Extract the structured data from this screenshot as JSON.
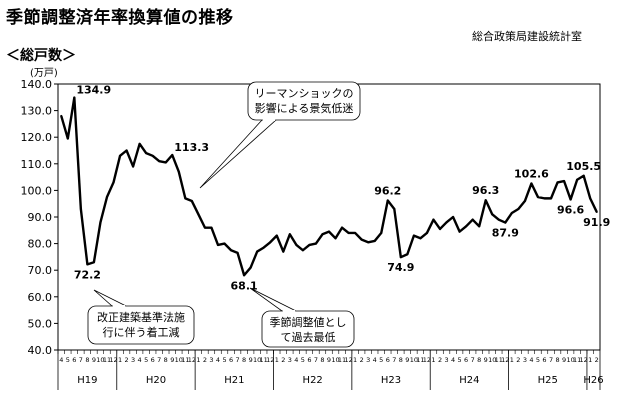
{
  "header": {
    "title": "季節調整済年率換算値の推移",
    "department": "総合政策局建設統計室",
    "subtitle": "＜総戸数＞"
  },
  "chart_data": {
    "type": "line",
    "title": "季節調整済年率換算値の推移",
    "ylabel": "(万戸)",
    "ylim": [
      40.0,
      140.0
    ],
    "yticks": [
      40.0,
      50.0,
      60.0,
      70.0,
      80.0,
      90.0,
      100.0,
      110.0,
      120.0,
      130.0,
      140.0
    ],
    "grid": false,
    "years": [
      {
        "label": "H19",
        "start": 0,
        "count": 9
      },
      {
        "label": "H20",
        "start": 9,
        "count": 12
      },
      {
        "label": "H21",
        "start": 21,
        "count": 12
      },
      {
        "label": "H22",
        "start": 33,
        "count": 12
      },
      {
        "label": "H23",
        "start": 45,
        "count": 12
      },
      {
        "label": "H24",
        "start": 57,
        "count": 12
      },
      {
        "label": "H25",
        "start": 69,
        "count": 12
      },
      {
        "label": "H26",
        "start": 81,
        "count": 2
      }
    ],
    "months": [
      "4",
      "5",
      "6",
      "7",
      "8",
      "9",
      "10",
      "11",
      "12",
      "1",
      "2",
      "3",
      "4",
      "5",
      "6",
      "7",
      "8",
      "9",
      "10",
      "11",
      "12",
      "1",
      "2",
      "3",
      "4",
      "5",
      "6",
      "7",
      "8",
      "9",
      "10",
      "11",
      "12",
      "1",
      "2",
      "3",
      "4",
      "5",
      "6",
      "7",
      "8",
      "9",
      "10",
      "11",
      "12",
      "1",
      "2",
      "3",
      "4",
      "5",
      "6",
      "7",
      "8",
      "9",
      "10",
      "11",
      "12",
      "1",
      "2",
      "3",
      "4",
      "5",
      "6",
      "7",
      "8",
      "9",
      "10",
      "11",
      "12",
      "1",
      "2",
      "3",
      "4",
      "5",
      "6",
      "7",
      "8",
      "9",
      "10",
      "11",
      "12",
      "1",
      "2"
    ],
    "values": [
      128.0,
      119.5,
      134.9,
      93.0,
      72.2,
      73.0,
      88.0,
      97.5,
      103.0,
      113.0,
      115.0,
      109.0,
      117.5,
      114.0,
      113.0,
      111.0,
      110.5,
      113.3,
      107.0,
      97.0,
      96.0,
      91.0,
      86.0,
      86.0,
      79.5,
      80.0,
      77.5,
      76.5,
      68.1,
      71.0,
      77.0,
      78.5,
      80.5,
      83.0,
      77.0,
      83.5,
      79.5,
      77.5,
      79.5,
      80.0,
      83.5,
      84.5,
      82.0,
      86.0,
      84.0,
      84.0,
      81.5,
      80.5,
      81.0,
      84.0,
      96.2,
      93.0,
      74.9,
      76.0,
      83.0,
      82.0,
      84.0,
      89.0,
      85.5,
      88.0,
      90.0,
      84.5,
      86.5,
      89.0,
      86.5,
      96.3,
      91.0,
      89.0,
      87.9,
      91.5,
      93.0,
      96.0,
      102.6,
      97.5,
      97.0,
      97.0,
      103.0,
      103.5,
      96.6,
      104.0,
      105.5,
      97.0,
      91.9
    ],
    "data_labels": [
      {
        "index": 2,
        "text": "134.9",
        "pos": "above-right"
      },
      {
        "index": 4,
        "text": "72.2",
        "pos": "below"
      },
      {
        "index": 17,
        "text": "113.3",
        "pos": "above-right"
      },
      {
        "index": 28,
        "text": "68.1",
        "pos": "below"
      },
      {
        "index": 50,
        "text": "96.2",
        "pos": "above"
      },
      {
        "index": 52,
        "text": "74.9",
        "pos": "below"
      },
      {
        "index": 65,
        "text": "96.3",
        "pos": "above"
      },
      {
        "index": 68,
        "text": "87.9",
        "pos": "below"
      },
      {
        "index": 72,
        "text": "102.6",
        "pos": "above"
      },
      {
        "index": 78,
        "text": "96.6",
        "pos": "below"
      },
      {
        "index": 80,
        "text": "105.5",
        "pos": "above"
      },
      {
        "index": 82,
        "text": "91.9",
        "pos": "below"
      }
    ],
    "annotations": [
      {
        "name": "annotation-lehman",
        "lines": [
          "リーマンショックの",
          "影響による景気低迷"
        ],
        "target_index": 19
      },
      {
        "name": "annotation-law-revision",
        "lines": [
          "改正建築基準法施",
          "行に伴う着工減"
        ],
        "target_index": 4
      },
      {
        "name": "annotation-record-low",
        "lines": [
          "季節調整値とし",
          "て過去最低"
        ],
        "target_index": 28
      }
    ]
  }
}
